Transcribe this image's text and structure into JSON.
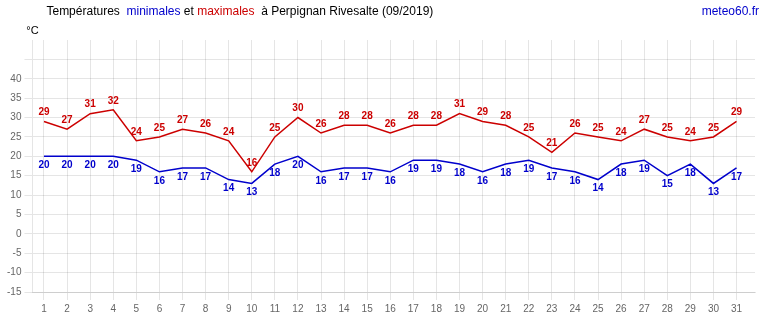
{
  "chart_data": {
    "type": "line",
    "title": "Températures  minimales et maximales  à Perpignan Rivesalte (09/2019)",
    "ylabel": "°C",
    "annotations": [
      {
        "text": "meteo60.fr",
        "color": "#0000cc"
      }
    ],
    "x": [
      1,
      2,
      3,
      4,
      5,
      6,
      7,
      8,
      9,
      10,
      11,
      12,
      13,
      14,
      15,
      16,
      17,
      18,
      19,
      20,
      21,
      22,
      23,
      24,
      25,
      26,
      27,
      28,
      29,
      30,
      31
    ],
    "series": [
      {
        "name": "maximales",
        "color": "#cc0000",
        "values": [
          29,
          27,
          31,
          32,
          24,
          25,
          27,
          26,
          24,
          16,
          25,
          30,
          26,
          28,
          28,
          26,
          28,
          28,
          31,
          29,
          28,
          25,
          21,
          26,
          25,
          24,
          27,
          25,
          24,
          25,
          29
        ]
      },
      {
        "name": "minimales",
        "color": "#0000cc",
        "values": [
          20,
          20,
          20,
          20,
          19,
          16,
          17,
          17,
          14,
          13,
          18,
          20,
          16,
          17,
          17,
          16,
          19,
          19,
          18,
          16,
          18,
          19,
          17,
          16,
          14,
          18,
          19,
          15,
          18,
          13,
          17
        ]
      }
    ],
    "xlim": [
      0.5,
      31.8
    ],
    "xticks": [
      1,
      2,
      3,
      4,
      5,
      6,
      7,
      8,
      9,
      10,
      11,
      12,
      13,
      14,
      15,
      16,
      17,
      18,
      19,
      20,
      21,
      22,
      23,
      24,
      25,
      26,
      27,
      28,
      29,
      30,
      31
    ],
    "ylim": [
      -15,
      50
    ],
    "yticks": [
      -15,
      -10,
      -5,
      0,
      5,
      10,
      15,
      20,
      25,
      30,
      35,
      40,
      {
        "value": 45,
        "label": ""
      }
    ],
    "grid": true,
    "data_labels": true
  }
}
